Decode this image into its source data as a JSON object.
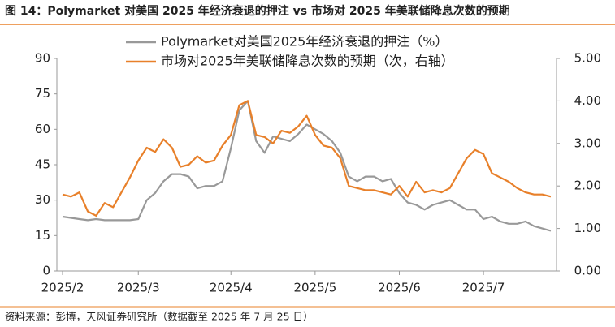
{
  "chart_data": {
    "type": "line",
    "title": "图 14：Polymarket 对美国 2025 年经济衰退的押注 vs 市场对 2025 年美联储降息次数的预期",
    "source": "资料来源：彭博，天风证券研究所（数据截至 2025 年 7 月 25 日）",
    "categories": [
      "2025/2",
      null,
      null,
      null,
      null,
      null,
      null,
      null,
      null,
      "2025/3",
      null,
      null,
      null,
      null,
      null,
      null,
      null,
      null,
      null,
      null,
      "2025/4",
      null,
      null,
      null,
      null,
      null,
      null,
      null,
      null,
      null,
      "2025/5",
      null,
      null,
      null,
      null,
      null,
      null,
      null,
      null,
      null,
      "2025/6",
      null,
      null,
      null,
      null,
      null,
      null,
      null,
      null,
      null,
      "2025/7",
      null,
      null,
      null,
      null,
      null,
      null,
      null,
      null
    ],
    "series": [
      {
        "name": "Polymarket对美国2025年经济衰退的押注（%）",
        "color": "#999999",
        "values": [
          23,
          22.5,
          22,
          21.5,
          22,
          21.5,
          21.5,
          21.5,
          21.5,
          22,
          30,
          33,
          38,
          41,
          41,
          40,
          35,
          36,
          36,
          38,
          52,
          68,
          72,
          55,
          50,
          57,
          56,
          55,
          58,
          62,
          60,
          58,
          55,
          50,
          40,
          38,
          40,
          40,
          38,
          39,
          33,
          29,
          28,
          26,
          28,
          29,
          30,
          28,
          26,
          26,
          22,
          23,
          21,
          20,
          20,
          21,
          19,
          18,
          17
        ]
      },
      {
        "name": "市场对2025年美联储降息次数的预期（次，右轴）",
        "color": "#e8802a",
        "axis": "y2",
        "values": [
          1.8,
          1.75,
          1.85,
          1.4,
          1.3,
          1.6,
          1.5,
          1.85,
          2.2,
          2.6,
          2.9,
          2.8,
          3.1,
          2.9,
          2.45,
          2.5,
          2.7,
          2.55,
          2.6,
          2.95,
          3.2,
          3.9,
          4.0,
          3.2,
          3.15,
          3.0,
          3.3,
          3.25,
          3.4,
          3.65,
          3.2,
          2.95,
          2.9,
          2.65,
          2.0,
          1.95,
          1.9,
          1.9,
          1.85,
          1.8,
          2.0,
          1.75,
          2.1,
          1.85,
          1.9,
          1.85,
          1.95,
          2.3,
          2.65,
          2.85,
          2.75,
          2.3,
          2.2,
          2.1,
          1.95,
          1.85,
          1.8,
          1.8,
          1.75
        ]
      }
    ],
    "ylim": [
      0,
      90
    ],
    "yticks": [
      0,
      15,
      30,
      45,
      60,
      75,
      90
    ],
    "y2lim": [
      0,
      5
    ],
    "y2ticks": [
      {
        "value": 0,
        "label": "0.00"
      },
      {
        "value": 1,
        "label": "1.00"
      },
      {
        "value": 2,
        "label": "2.00"
      },
      {
        "value": 3,
        "label": "3.00"
      },
      {
        "value": 4,
        "label": "4.00"
      },
      {
        "value": 5,
        "label": "5.00"
      }
    ],
    "grid": false
  }
}
